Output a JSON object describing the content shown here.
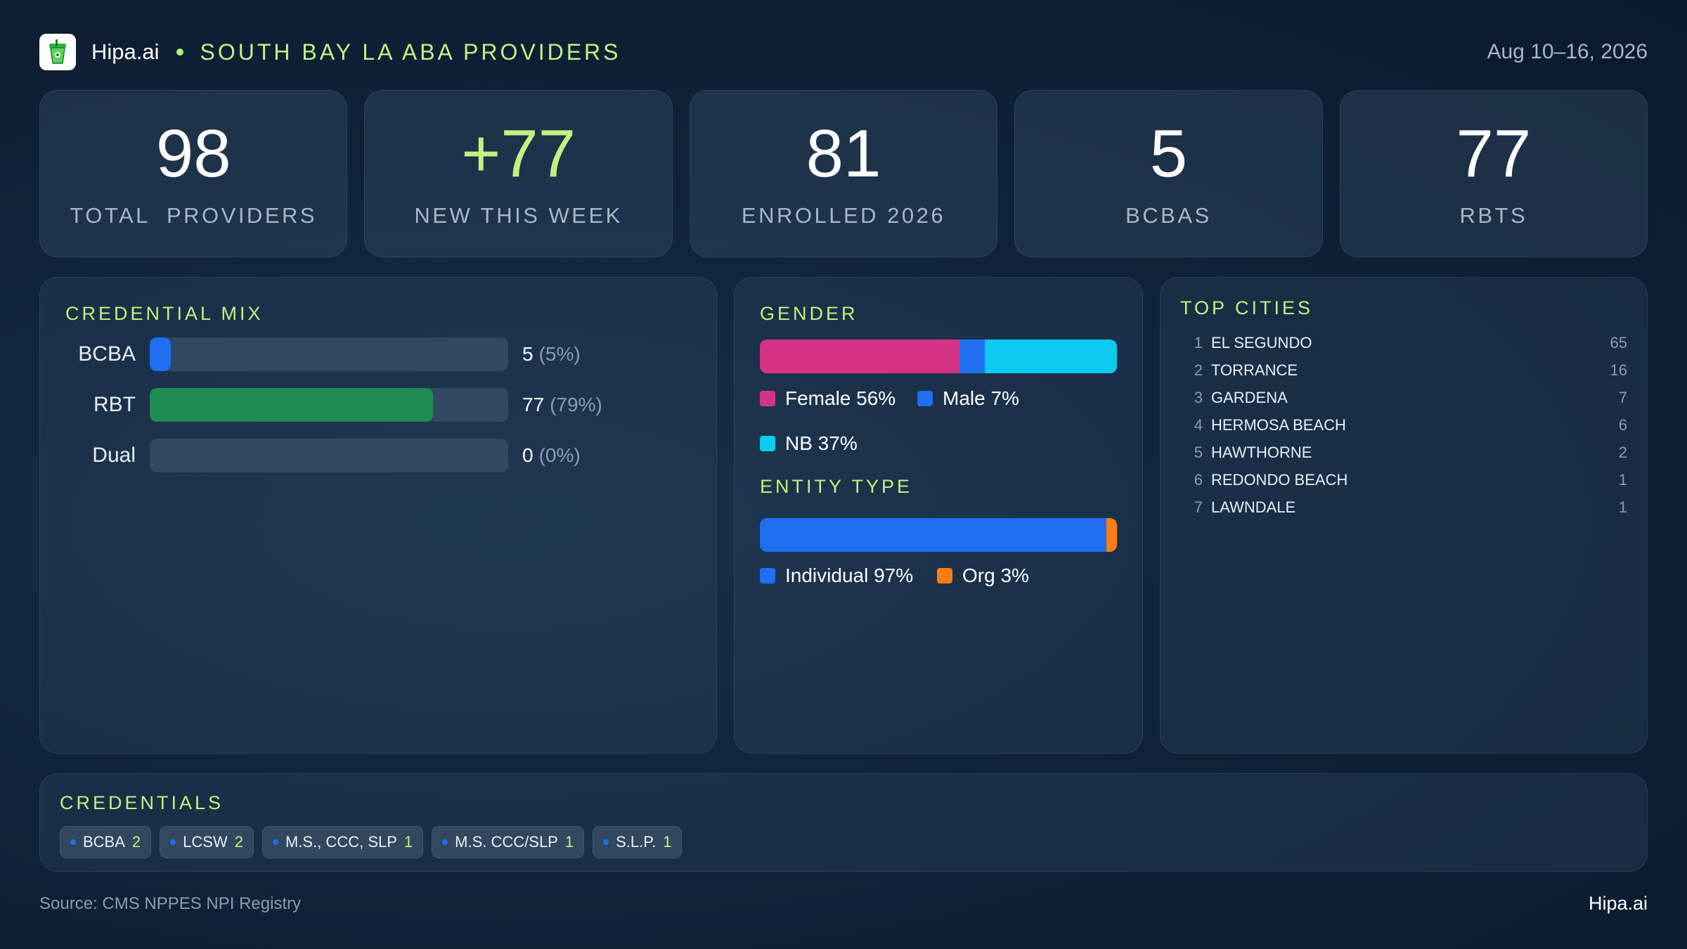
{
  "header": {
    "brand": "Hipa.ai",
    "title": "SOUTH BAY LA ABA PROVIDERS",
    "date_range": "Aug 10–16, 2026",
    "logo_icon": "green-cup-icon"
  },
  "kpis": [
    {
      "value": "98",
      "label": "TOTAL  PROVIDERS"
    },
    {
      "value": "+77",
      "label": "NEW THIS WEEK"
    },
    {
      "value": "81",
      "label": "ENROLLED 2026"
    },
    {
      "value": "5",
      "label": "BCBAS"
    },
    {
      "value": "77",
      "label": "RBTS"
    }
  ],
  "credential_mix": {
    "title": "CREDENTIAL MIX",
    "rows": [
      {
        "label": "BCBA",
        "value": "5",
        "pct_text": "(5%)",
        "fraction": 0.05,
        "color": "#1f6ff0"
      },
      {
        "label": "RBT",
        "value": "77",
        "pct_text": "(79%)",
        "fraction": 0.79,
        "color": "#1e8c52"
      },
      {
        "label": "Dual",
        "value": "0",
        "pct_text": "(0%)",
        "fraction": 0.0,
        "color": "#1f6ff0"
      }
    ]
  },
  "gender": {
    "title": "GENDER",
    "segments": [
      {
        "label": "Female 56%",
        "fraction": 0.56,
        "color": "#d63384"
      },
      {
        "label": "Male 7%",
        "fraction": 0.07,
        "color": "#1f6ff0"
      },
      {
        "label": "NB 37%",
        "fraction": 0.37,
        "color": "#0dcaf0"
      }
    ]
  },
  "entity_type": {
    "title": "ENTITY TYPE",
    "segments": [
      {
        "label": "Individual 97%",
        "fraction": 0.97,
        "color": "#1f6ff0"
      },
      {
        "label": "Org 3%",
        "fraction": 0.03,
        "color": "#fd7e14"
      }
    ]
  },
  "top_cities": {
    "title": "TOP CITIES",
    "rows": [
      {
        "rank": "1",
        "name": "EL SEGUNDO",
        "count": "65"
      },
      {
        "rank": "2",
        "name": "TORRANCE",
        "count": "16"
      },
      {
        "rank": "3",
        "name": "GARDENA",
        "count": "7"
      },
      {
        "rank": "4",
        "name": "HERMOSA BEACH",
        "count": "6"
      },
      {
        "rank": "5",
        "name": "HAWTHORNE",
        "count": "2"
      },
      {
        "rank": "6",
        "name": "REDONDO BEACH",
        "count": "1"
      },
      {
        "rank": "7",
        "name": "LAWNDALE",
        "count": "1"
      }
    ]
  },
  "credentials": {
    "title": "CREDENTIALS",
    "chips": [
      {
        "label": "BCBA",
        "count": "2"
      },
      {
        "label": "LCSW",
        "count": "2"
      },
      {
        "label": "M.S., CCC, SLP",
        "count": "1"
      },
      {
        "label": "M.S. CCC/SLP",
        "count": "1"
      },
      {
        "label": "S.L.P.",
        "count": "1"
      }
    ]
  },
  "footer": {
    "source": "Source: CMS NPPES NPI Registry",
    "brand": "Hipa.ai"
  }
}
